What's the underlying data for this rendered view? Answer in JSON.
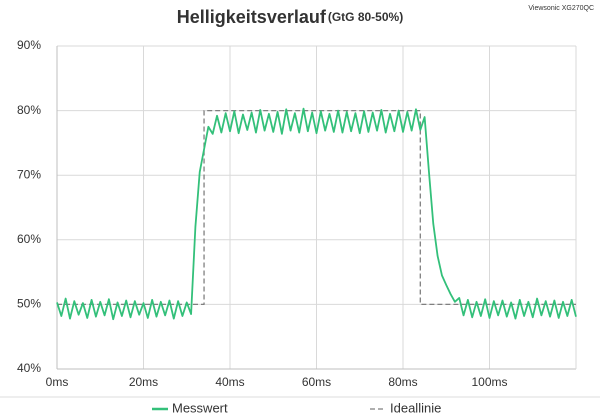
{
  "chart_data": {
    "type": "line",
    "title": "Helligkeitsverlauf",
    "subtitle": "(GtG 80-50%)",
    "watermark": "Viewsonic XG270QC",
    "xlim": [
      0,
      120
    ],
    "ylim": [
      40,
      90
    ],
    "xticks": [
      {
        "value": 0,
        "label": "0ms"
      },
      {
        "value": 20,
        "label": "20ms"
      },
      {
        "value": 40,
        "label": "40ms"
      },
      {
        "value": 60,
        "label": "60ms"
      },
      {
        "value": 80,
        "label": "80ms"
      },
      {
        "value": 100,
        "label": "100ms"
      }
    ],
    "yticks": [
      {
        "value": 40,
        "label": "40%"
      },
      {
        "value": 50,
        "label": "50%"
      },
      {
        "value": 60,
        "label": "60%"
      },
      {
        "value": 70,
        "label": "70%"
      },
      {
        "value": 80,
        "label": "80%"
      },
      {
        "value": 90,
        "label": "90%"
      }
    ],
    "grid": true,
    "series": [
      {
        "name": "Messwert",
        "color": "#33c07a",
        "dash": false,
        "x": [
          0,
          1,
          2,
          3,
          4,
          5,
          6,
          7,
          8,
          9,
          10,
          11,
          12,
          13,
          14,
          15,
          16,
          17,
          18,
          19,
          20,
          21,
          22,
          23,
          24,
          25,
          26,
          27,
          28,
          29,
          30,
          31,
          32,
          33,
          34,
          35,
          36,
          37,
          38,
          39,
          40,
          41,
          42,
          43,
          44,
          45,
          46,
          47,
          48,
          49,
          50,
          51,
          52,
          53,
          54,
          55,
          56,
          57,
          58,
          59,
          60,
          61,
          62,
          63,
          64,
          65,
          66,
          67,
          68,
          69,
          70,
          71,
          72,
          73,
          74,
          75,
          76,
          77,
          78,
          79,
          80,
          81,
          82,
          83,
          84,
          85,
          86,
          87,
          88,
          89,
          90,
          91,
          92,
          93,
          94,
          95,
          96,
          97,
          98,
          99,
          100,
          101,
          102,
          103,
          104,
          105,
          106,
          107,
          108,
          109,
          110,
          111,
          112,
          113,
          114,
          115,
          116,
          117,
          118,
          119,
          120
        ],
        "values": [
          50.3,
          48.2,
          50.9,
          47.8,
          50.5,
          48.4,
          50.2,
          47.9,
          50.7,
          48.1,
          50.4,
          48.3,
          50.8,
          47.7,
          50.3,
          48.2,
          50.6,
          48.0,
          50.5,
          48.4,
          50.2,
          47.9,
          50.7,
          48.1,
          50.4,
          48.3,
          50.6,
          47.8,
          50.5,
          48.2,
          50.3,
          48.5,
          62,
          70.5,
          74,
          77.5,
          76.4,
          79.2,
          76.6,
          79.6,
          76.8,
          79.9,
          76.5,
          79.4,
          77.0,
          79.7,
          76.6,
          80.1,
          76.9,
          79.5,
          76.7,
          79.8,
          76.4,
          80.2,
          76.9,
          79.6,
          76.6,
          80.3,
          76.8,
          79.7,
          76.5,
          79.9,
          76.9,
          79.5,
          76.7,
          80.0,
          76.6,
          79.8,
          76.8,
          79.6,
          76.5,
          79.9,
          76.7,
          79.7,
          76.9,
          80.1,
          76.6,
          79.5,
          76.8,
          80.0,
          76.7,
          79.8,
          76.9,
          80.2,
          77.0,
          79.0,
          70.5,
          62.5,
          57.5,
          54.5,
          53.0,
          51.6,
          50.4,
          51.0,
          48.3,
          50.7,
          48.0,
          50.4,
          48.2,
          50.8,
          47.9,
          50.5,
          48.3,
          50.6,
          48.1,
          50.3,
          47.8,
          50.7,
          48.2,
          50.4,
          48.0,
          50.9,
          48.3,
          50.5,
          48.1,
          50.6,
          47.9,
          50.4,
          48.2,
          50.7,
          48.1
        ]
      },
      {
        "name": "Ideallinie",
        "color": "#7f7f7f",
        "dash": true,
        "x": [
          0,
          34,
          34,
          84,
          84,
          120
        ],
        "values": [
          50,
          50,
          80,
          80,
          50,
          50
        ]
      }
    ]
  }
}
